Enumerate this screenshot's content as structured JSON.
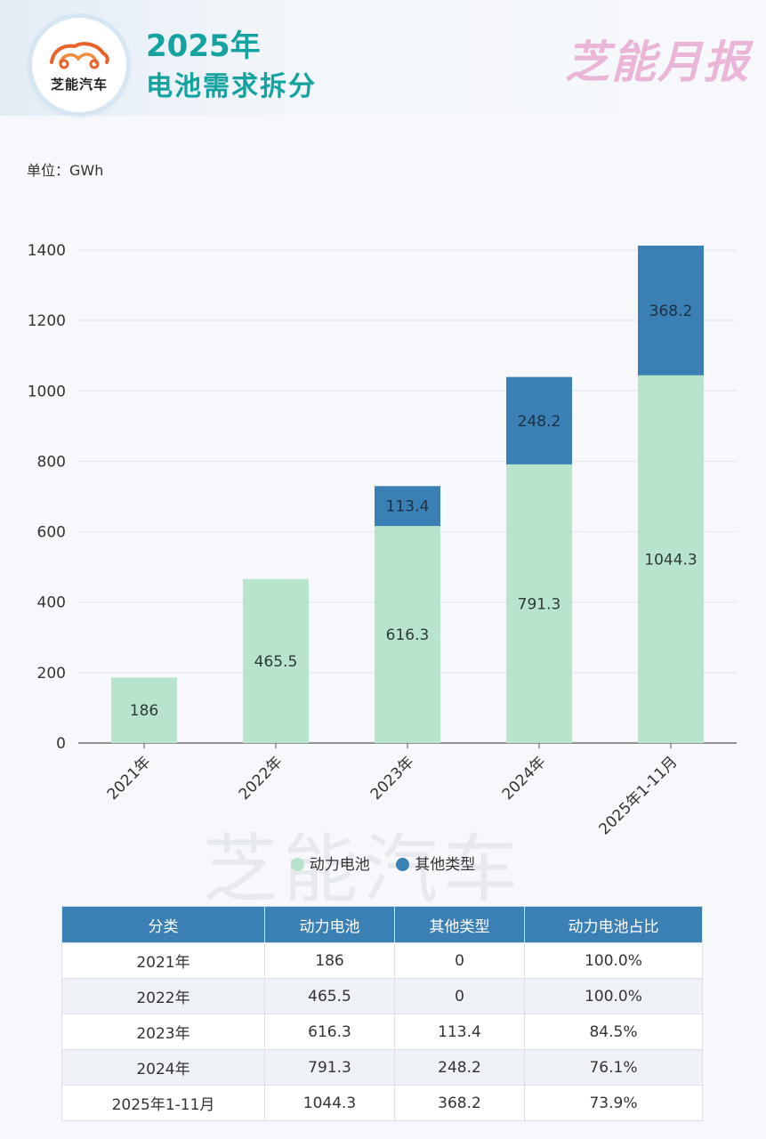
{
  "header": {
    "logo_text": "芝能汽车",
    "title_line1": "2025年",
    "title_line2": "电池需求拆分",
    "brand": "芝能月报"
  },
  "unit_label": "单位：GWh",
  "watermark": "芝能汽车",
  "colors": {
    "power": "#b8e3cc",
    "other": "#3b80b4",
    "title": "#14a3a0"
  },
  "chart_data": {
    "type": "bar",
    "stacked": true,
    "categories": [
      "2021年",
      "2022年",
      "2023年",
      "2024年",
      "2025年1-11月"
    ],
    "series": [
      {
        "name": "动力电池",
        "values": [
          186,
          465.5,
          616.3,
          791.3,
          1044.3
        ],
        "labels": [
          "186",
          "465.5",
          "616.3",
          "791.3",
          "1044.3"
        ]
      },
      {
        "name": "其他类型",
        "values": [
          0,
          0,
          113.4,
          248.2,
          368.2
        ],
        "labels": [
          "",
          "",
          "113.4",
          "248.2",
          "368.2"
        ]
      }
    ],
    "ylim": [
      0,
      1400
    ],
    "yticks": [
      0,
      200,
      400,
      600,
      800,
      1000,
      1200,
      1400
    ],
    "ylabel": "单位：GWh",
    "grid": true,
    "legend": "bottom"
  },
  "table": {
    "headers": [
      "分类",
      "动力电池",
      "其他类型",
      "动力电池占比"
    ],
    "rows": [
      [
        "2021年",
        "186",
        "0",
        "100.0%"
      ],
      [
        "2022年",
        "465.5",
        "0",
        "100.0%"
      ],
      [
        "2023年",
        "616.3",
        "113.4",
        "84.5%"
      ],
      [
        "2024年",
        "791.3",
        "248.2",
        "76.1%"
      ],
      [
        "2025年1-11月",
        "1044.3",
        "368.2",
        "73.9%"
      ]
    ]
  }
}
